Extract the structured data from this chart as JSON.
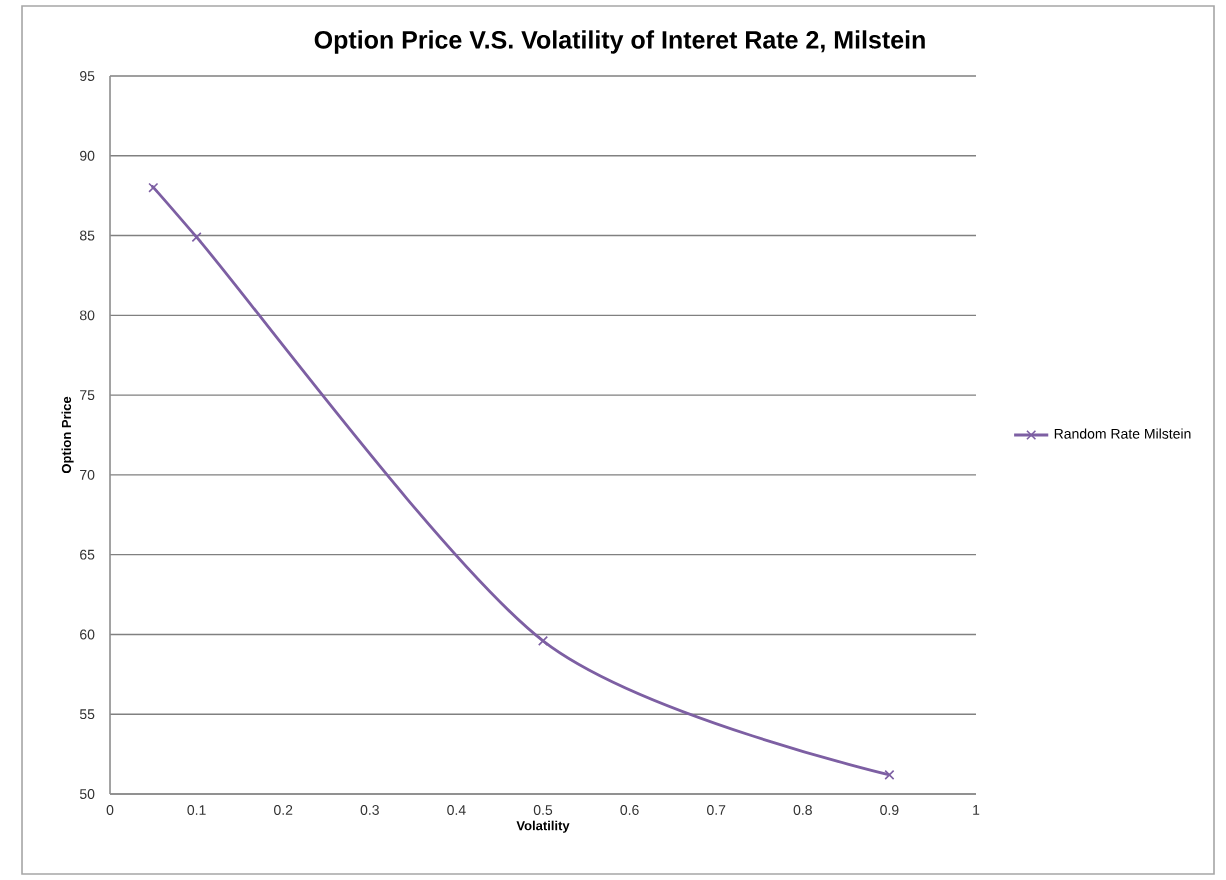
{
  "chart_data": {
    "type": "line",
    "title": "Option Price V.S. Volatility of Interet Rate 2, Milstein",
    "xlabel": "Volatility",
    "ylabel": "Option Price",
    "x": [
      0.05,
      0.1,
      0.5,
      0.9
    ],
    "series": [
      {
        "name": "Random Rate Milstein",
        "color": "#7d5fa3",
        "values": [
          88.0,
          84.9,
          59.6,
          51.2
        ]
      }
    ],
    "xlim": [
      0,
      1
    ],
    "xticks": [
      0,
      0.1,
      0.2,
      0.3,
      0.4,
      0.5,
      0.6,
      0.7,
      0.8,
      0.9,
      1
    ],
    "ylim": [
      50,
      95
    ],
    "yticks": [
      50,
      55,
      60,
      65,
      70,
      75,
      80,
      85,
      90,
      95
    ],
    "grid": "y",
    "legend": "right",
    "marker": "cross",
    "line_style": "solid"
  }
}
